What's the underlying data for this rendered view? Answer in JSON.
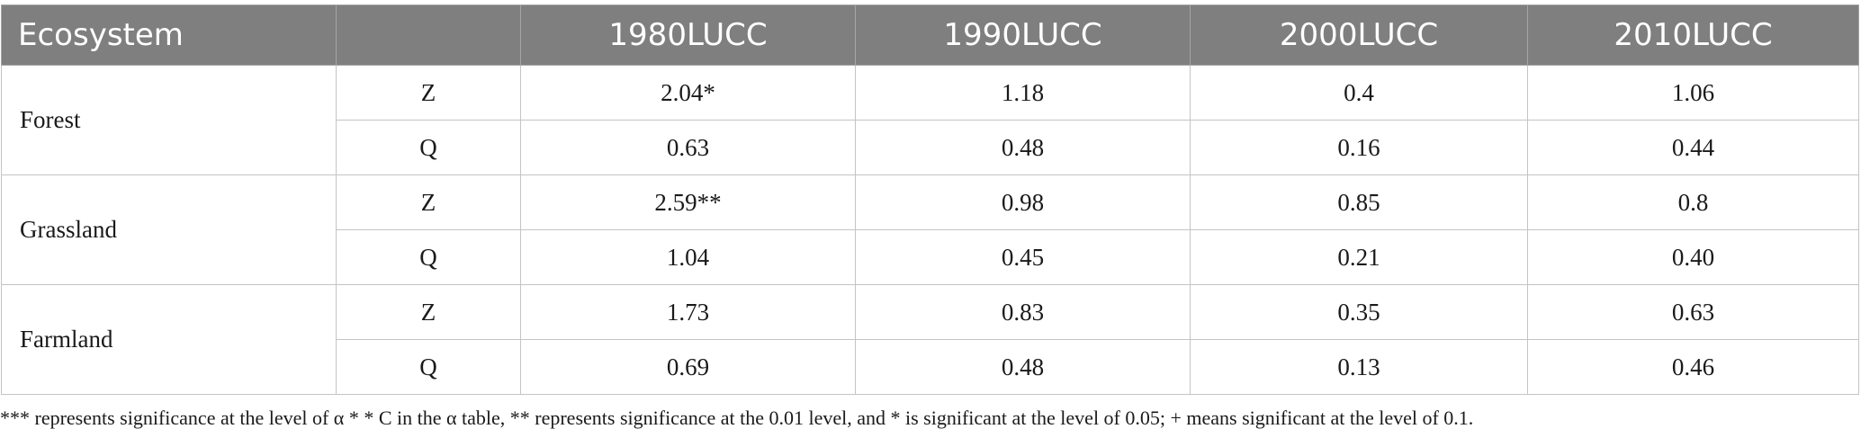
{
  "columns": [
    "Ecosystem",
    "",
    "1980LUCC",
    "1990LUCC",
    "2000LUCC",
    "2010LUCC"
  ],
  "groups": [
    {
      "name": "Forest",
      "rows": [
        {
          "stat": "Z",
          "values": [
            "2.04*",
            "1.18",
            "0.4",
            "1.06"
          ]
        },
        {
          "stat": "Q",
          "values": [
            "0.63",
            "0.48",
            "0.16",
            "0.44"
          ]
        }
      ]
    },
    {
      "name": "Grassland",
      "rows": [
        {
          "stat": "Z",
          "values": [
            "2.59**",
            "0.98",
            "0.85",
            "0.8"
          ]
        },
        {
          "stat": "Q",
          "values": [
            "1.04",
            "0.45",
            "0.21",
            "0.40"
          ]
        }
      ]
    },
    {
      "name": "Farmland",
      "rows": [
        {
          "stat": "Z",
          "values": [
            "1.73",
            "0.83",
            "0.35",
            "0.63"
          ]
        },
        {
          "stat": "Q",
          "values": [
            "0.69",
            "0.48",
            "0.13",
            "0.46"
          ]
        }
      ]
    }
  ],
  "footnote": "*** represents significance at the level of α * * C in the α table, ** represents significance at the 0.01 level, and * is significant at the level of 0.05; + means significant at the level of 0.1."
}
